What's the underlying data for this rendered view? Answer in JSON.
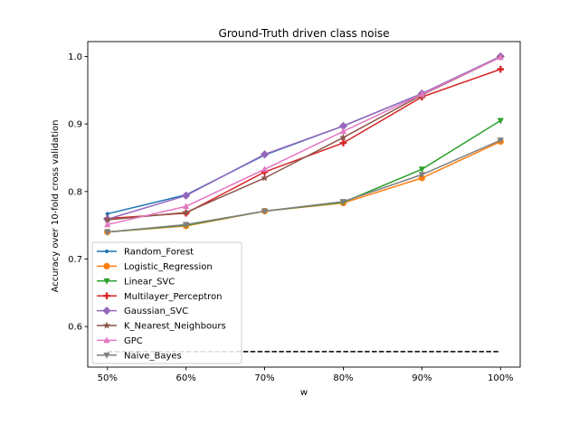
{
  "chart_data": {
    "type": "line",
    "title": "Ground-Truth driven class noise",
    "xlabel": "w",
    "ylabel": "Accuracy over 10-fold cross validation",
    "categories": [
      "50%",
      "60%",
      "70%",
      "80%",
      "90%",
      "100%"
    ],
    "ylim": [
      0.54,
      1.022
    ],
    "yticks": [
      "0.6",
      "0.7",
      "0.8",
      "0.9",
      "1.0"
    ],
    "ytick_values": [
      0.6,
      0.7,
      0.8,
      0.9,
      1.0
    ],
    "grid": false,
    "legend_position": "lower-left",
    "series": [
      {
        "name": "Random_Forest",
        "color": "#1f77b4",
        "marker": "point",
        "values": [
          0.767,
          0.795,
          0.854,
          0.897,
          0.945,
          1.0
        ]
      },
      {
        "name": "Logistic_Regression",
        "color": "#ff7f0e",
        "marker": "circle",
        "values": [
          0.74,
          0.749,
          0.771,
          0.783,
          0.82,
          0.874
        ]
      },
      {
        "name": "Linear_SVC",
        "color": "#2ca02c",
        "marker": "triangle-down",
        "values": [
          0.74,
          0.75,
          0.771,
          0.784,
          0.833,
          0.905
        ]
      },
      {
        "name": "Multilayer_Perceptron",
        "color": "#d62728",
        "marker": "plus",
        "values": [
          0.76,
          0.768,
          0.829,
          0.872,
          0.94,
          0.981
        ]
      },
      {
        "name": "Gaussian_SVC",
        "color": "#9467bd",
        "marker": "diamond",
        "values": [
          0.759,
          0.794,
          0.855,
          0.897,
          0.945,
          1.0
        ]
      },
      {
        "name": "K_Nearest_Neighbours",
        "color": "#8c564b",
        "marker": "star",
        "values": [
          0.758,
          0.769,
          0.82,
          0.88,
          0.943,
          0.999
        ]
      },
      {
        "name": "GPC",
        "color": "#e377c2",
        "marker": "triangle-up",
        "values": [
          0.751,
          0.778,
          0.833,
          0.889,
          0.944,
          0.999
        ]
      },
      {
        "name": "Naive_Bayes",
        "color": "#7f7f7f",
        "marker": "triangle-down",
        "values": [
          0.74,
          0.751,
          0.771,
          0.785,
          0.825,
          0.876
        ]
      }
    ],
    "baseline": {
      "value": 0.563,
      "color": "#000000",
      "style": "dashed"
    }
  }
}
